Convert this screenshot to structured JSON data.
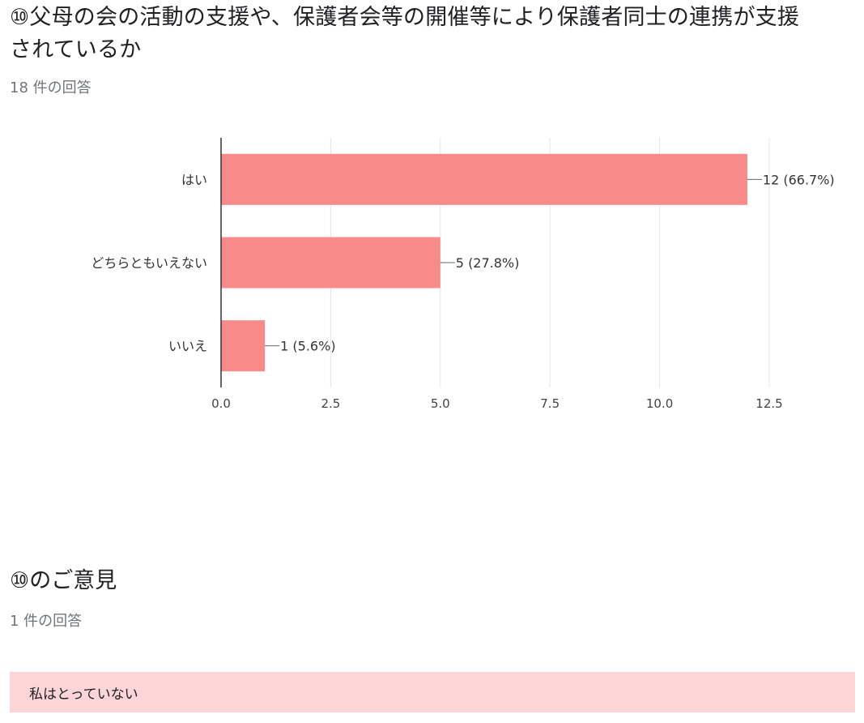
{
  "question1": {
    "title": "⑩父母の会の活動の支援や、保護者会等の開催等により保護者同士の連携が支援されているか",
    "response_count": "18 件の回答"
  },
  "chart_data": {
    "type": "bar",
    "orientation": "horizontal",
    "categories": [
      "はい",
      "どちらともいえない",
      "いいえ"
    ],
    "values": [
      12,
      5,
      1
    ],
    "value_labels": [
      "12 (66.7%)",
      "5 (27.8%)",
      "1 (5.6%)"
    ],
    "xlim": [
      0,
      12.5
    ],
    "xticks": [
      "0.0",
      "2.5",
      "5.0",
      "7.5",
      "10.0",
      "12.5"
    ],
    "grid": true,
    "legend": "none",
    "bar_color": "#f88a89",
    "title": "",
    "xlabel": "",
    "ylabel": ""
  },
  "question2": {
    "title": "⑩のご意見",
    "response_count": "1 件の回答",
    "responses": [
      "私はとっていない"
    ]
  }
}
